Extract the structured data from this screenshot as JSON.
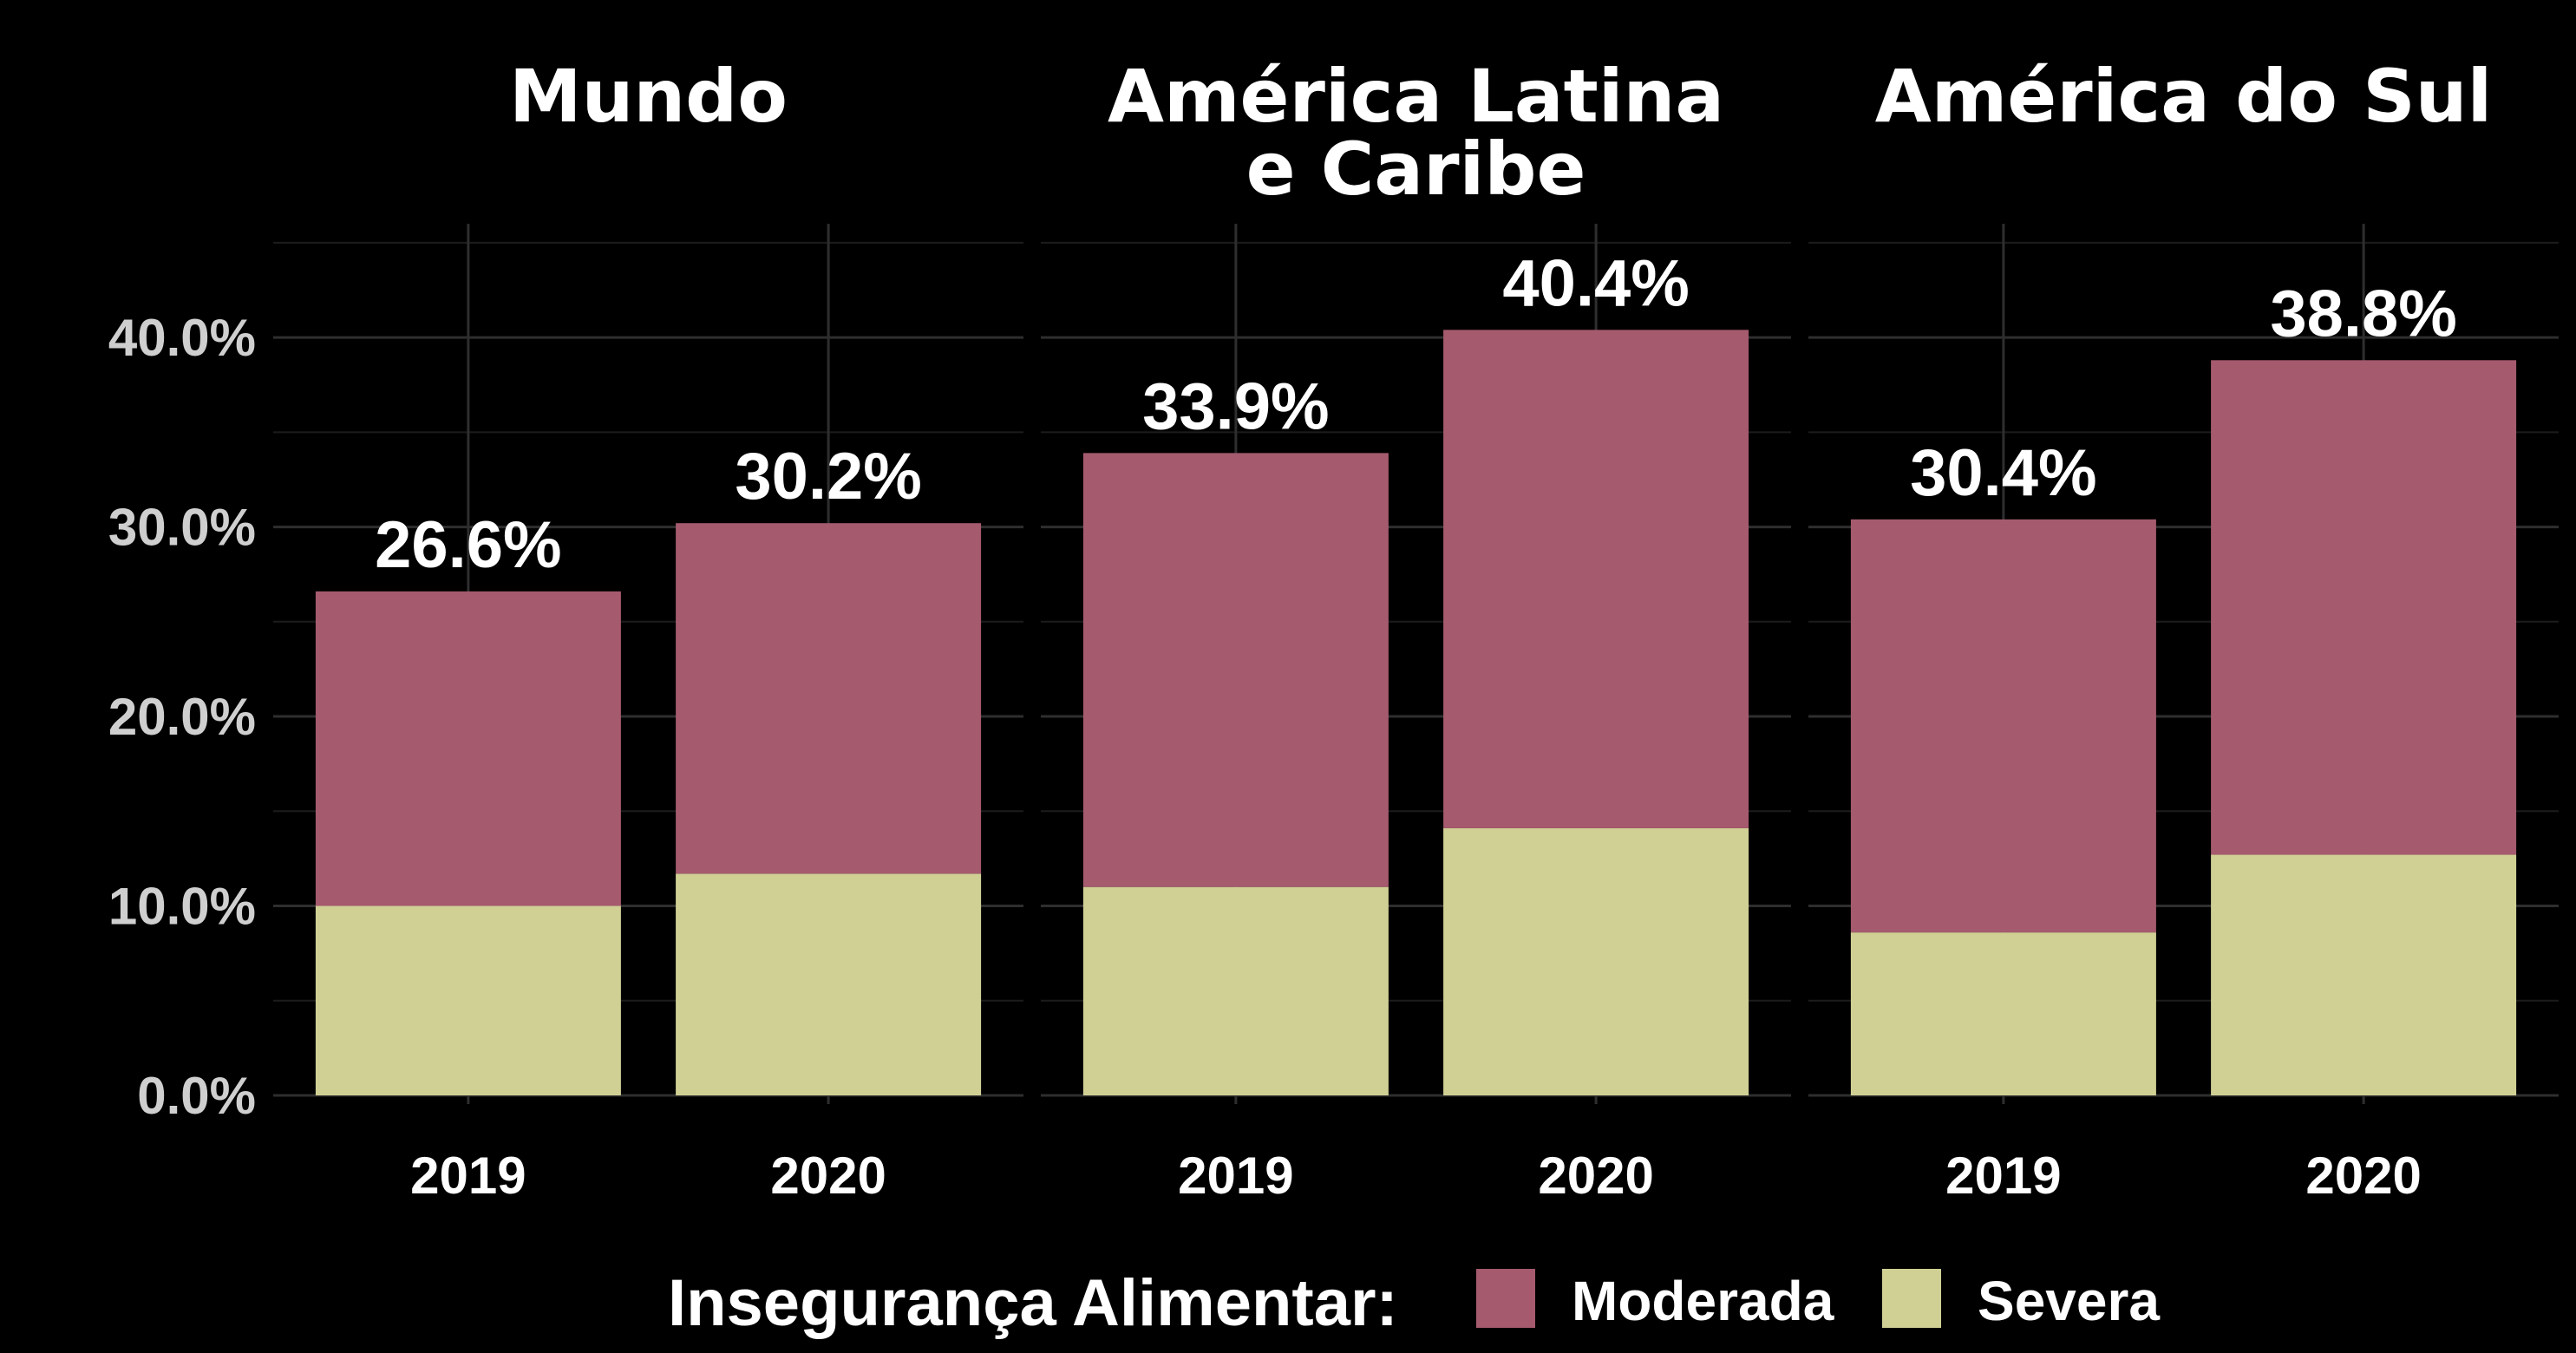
{
  "chart_data": {
    "type": "bar",
    "stacked": true,
    "ylim": [
      0,
      46
    ],
    "yticks": [
      "0.0%",
      "10.0%",
      "20.0%",
      "30.0%",
      "40.0%"
    ],
    "ytick_values": [
      0,
      10,
      20,
      30,
      40
    ],
    "grid": true,
    "legend": {
      "title": "Insegurança Alimentar:",
      "placement": "bottom",
      "entries": [
        {
          "label": "Moderada",
          "color": "#a55a6e"
        },
        {
          "label": "Severa",
          "color": "#d0d095"
        }
      ]
    },
    "panels": [
      {
        "title": [
          "Mundo"
        ],
        "categories": [
          "2019",
          "2020"
        ],
        "series": [
          {
            "name": "Severa",
            "values": [
              10.0,
              11.7
            ]
          },
          {
            "name": "Moderada",
            "values": [
              16.6,
              18.5
            ]
          }
        ],
        "totals": [
          "26.6%",
          "30.2%"
        ],
        "total_values": [
          26.6,
          30.2
        ]
      },
      {
        "title": [
          "América Latina",
          "e Caribe"
        ],
        "categories": [
          "2019",
          "2020"
        ],
        "series": [
          {
            "name": "Severa",
            "values": [
              11.0,
              14.1
            ]
          },
          {
            "name": "Moderada",
            "values": [
              22.9,
              26.3
            ]
          }
        ],
        "totals": [
          "33.9%",
          "40.4%"
        ],
        "total_values": [
          33.9,
          40.4
        ]
      },
      {
        "title": [
          "América do Sul"
        ],
        "categories": [
          "2019",
          "2020"
        ],
        "series": [
          {
            "name": "Severa",
            "values": [
              8.6,
              12.7
            ]
          },
          {
            "name": "Moderada",
            "values": [
              21.8,
              26.1
            ]
          }
        ],
        "totals": [
          "30.4%",
          "38.8%"
        ],
        "total_values": [
          30.4,
          38.8
        ]
      }
    ]
  }
}
